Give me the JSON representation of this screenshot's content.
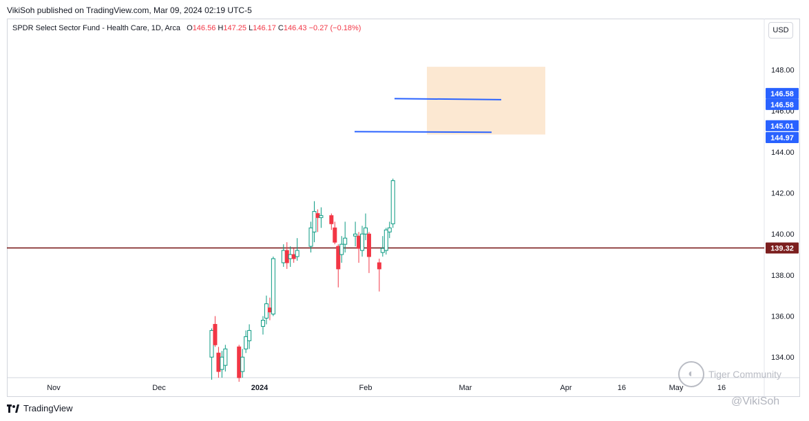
{
  "header": {
    "publish_line": "VikiSoh published on TradingView.com, Mar 09, 2024 02:19 UTC-5"
  },
  "legend": {
    "symbol": "SPDR Select Sector Fund - Health Care, 1D, Arca",
    "o_label": "O",
    "o_value": "146.56",
    "h_label": "H",
    "h_value": "147.25",
    "l_label": "L",
    "l_value": "146.17",
    "c_label": "C",
    "c_value": "146.43",
    "change": "−0.27 (−0.18%)"
  },
  "currency_button": "USD",
  "footer": {
    "brand": "TradingView",
    "handle": "@VikiSoh"
  },
  "watermark": {
    "text": "Tiger Community"
  },
  "colors": {
    "up": "#089981",
    "down": "#f23645",
    "level_line": "#7b1e1e",
    "trend_line": "#2962ff",
    "highlight_box": "#fce8d2",
    "price_badge": "#2962ff"
  },
  "chart_data": {
    "type": "candlestick",
    "y_range": [
      133.0,
      150.5
    ],
    "y_ticks": [
      "134.00",
      "136.00",
      "138.00",
      "140.00",
      "142.00",
      "144.00",
      "146.00",
      "148.00"
    ],
    "x_ticks": [
      "Nov",
      "Dec",
      "2024",
      "Feb",
      "Mar",
      "Apr",
      "16",
      "May",
      "16"
    ],
    "candles": [
      {
        "date": "2023-12-18",
        "o": 134.0,
        "h": 135.4,
        "l": 132.9,
        "c": 135.3
      },
      {
        "date": "2023-12-19",
        "o": 135.6,
        "h": 136.0,
        "l": 134.5,
        "c": 134.6
      },
      {
        "date": "2023-12-20",
        "o": 134.2,
        "h": 134.5,
        "l": 133.0,
        "c": 133.3
      },
      {
        "date": "2023-12-21",
        "o": 133.4,
        "h": 134.3,
        "l": 133.0,
        "c": 134.0
      },
      {
        "date": "2023-12-22",
        "o": 133.6,
        "h": 134.6,
        "l": 133.3,
        "c": 134.4
      },
      {
        "date": "2023-12-26",
        "o": 134.5,
        "h": 134.6,
        "l": 132.8,
        "c": 133.0
      },
      {
        "date": "2023-12-27",
        "o": 133.3,
        "h": 134.4,
        "l": 133.0,
        "c": 134.0
      },
      {
        "date": "2023-12-28",
        "o": 134.4,
        "h": 135.3,
        "l": 134.2,
        "c": 135.0
      },
      {
        "date": "2023-12-29",
        "o": 134.8,
        "h": 135.6,
        "l": 134.4,
        "c": 135.3
      },
      {
        "date": "2024-01-02",
        "o": 135.5,
        "h": 136.0,
        "l": 135.1,
        "c": 135.8
      },
      {
        "date": "2024-01-03",
        "o": 135.9,
        "h": 137.0,
        "l": 135.6,
        "c": 136.6
      },
      {
        "date": "2024-01-04",
        "o": 136.4,
        "h": 136.9,
        "l": 135.8,
        "c": 136.2
      },
      {
        "date": "2024-01-05",
        "o": 136.1,
        "h": 138.9,
        "l": 136.0,
        "c": 138.8
      },
      {
        "date": "2024-01-08",
        "o": 138.6,
        "h": 139.5,
        "l": 138.4,
        "c": 139.2
      },
      {
        "date": "2024-01-09",
        "o": 139.2,
        "h": 139.6,
        "l": 138.3,
        "c": 138.6
      },
      {
        "date": "2024-01-10",
        "o": 138.8,
        "h": 139.4,
        "l": 138.4,
        "c": 139.0
      },
      {
        "date": "2024-01-11",
        "o": 139.0,
        "h": 139.3,
        "l": 138.6,
        "c": 138.8
      },
      {
        "date": "2024-01-12",
        "o": 138.9,
        "h": 139.8,
        "l": 138.7,
        "c": 139.2
      },
      {
        "date": "2024-01-16",
        "o": 139.4,
        "h": 140.6,
        "l": 139.1,
        "c": 140.3
      },
      {
        "date": "2024-01-17",
        "o": 140.1,
        "h": 141.6,
        "l": 139.6,
        "c": 141.1
      },
      {
        "date": "2024-01-18",
        "o": 141.0,
        "h": 141.2,
        "l": 140.1,
        "c": 140.8
      },
      {
        "date": "2024-01-19",
        "o": 140.8,
        "h": 141.3,
        "l": 140.3,
        "c": 140.9
      },
      {
        "date": "2024-01-22",
        "o": 140.9,
        "h": 141.0,
        "l": 140.2,
        "c": 140.5
      },
      {
        "date": "2024-01-23",
        "o": 140.3,
        "h": 140.6,
        "l": 139.5,
        "c": 139.6
      },
      {
        "date": "2024-01-24",
        "o": 139.4,
        "h": 139.5,
        "l": 137.4,
        "c": 138.3
      },
      {
        "date": "2024-01-25",
        "o": 139.0,
        "h": 139.9,
        "l": 138.6,
        "c": 139.5
      },
      {
        "date": "2024-01-26",
        "o": 139.5,
        "h": 140.6,
        "l": 139.1,
        "c": 139.8
      },
      {
        "date": "2024-01-29",
        "o": 139.9,
        "h": 140.6,
        "l": 139.4,
        "c": 140.0
      },
      {
        "date": "2024-01-30",
        "o": 139.9,
        "h": 140.1,
        "l": 138.6,
        "c": 139.3
      },
      {
        "date": "2024-01-31",
        "o": 139.2,
        "h": 140.4,
        "l": 138.9,
        "c": 140.0
      },
      {
        "date": "2024-02-01",
        "o": 140.0,
        "h": 141.0,
        "l": 139.7,
        "c": 140.3
      },
      {
        "date": "2024-02-02",
        "o": 140.0,
        "h": 140.1,
        "l": 138.1,
        "c": 138.9
      },
      {
        "date": "2024-02-05",
        "o": 138.6,
        "h": 138.8,
        "l": 137.2,
        "c": 138.3
      },
      {
        "date": "2024-02-06",
        "o": 139.1,
        "h": 139.9,
        "l": 138.9,
        "c": 139.3
      },
      {
        "date": "2024-02-07",
        "o": 139.2,
        "h": 140.3,
        "l": 139.0,
        "c": 140.2
      },
      {
        "date": "2024-02-08",
        "o": 140.1,
        "h": 140.6,
        "l": 139.8,
        "c": 140.3
      },
      {
        "date": "2024-02-09",
        "o": 140.5,
        "h": 142.7,
        "l": 140.3,
        "c": 142.6
      }
    ],
    "levels": [
      {
        "label": "139.32",
        "value": 139.32
      },
      {
        "label": "146.58",
        "value": 146.58
      },
      {
        "label": "146.58",
        "value": 146.58
      },
      {
        "label": "145.01",
        "value": 145.01
      },
      {
        "label": "144.97",
        "value": 144.97
      }
    ]
  }
}
